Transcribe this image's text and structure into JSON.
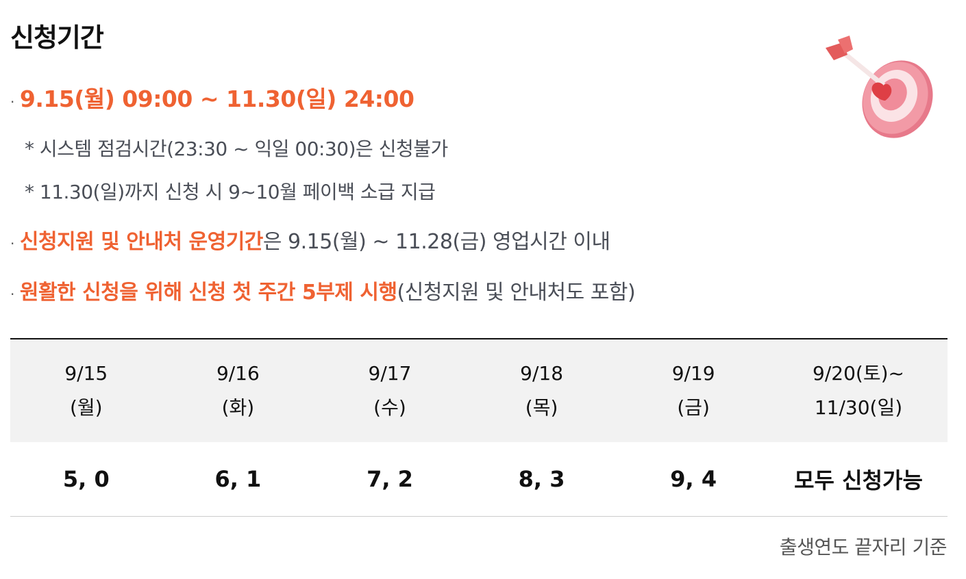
{
  "title": "신청기간",
  "period": "9.15(월) 09:00 ~ 11.30(일) 24:00",
  "notes": [
    "* 시스템 점검시간(23:30 ~ 익일 00:30)은 신청불가",
    "* 11.30(일)까지 신청 시 9~10월 페이백 소급 지급"
  ],
  "support": {
    "highlight": "신청지원 및 안내처 운영기간",
    "rest": "은 9.15(월) ~ 11.28(금) 영업시간 이내"
  },
  "rotation": {
    "highlight": "원활한 신청을 위해 신청 첫 주간 5부제 시행",
    "rest": "(신청지원 및 안내처도 포함)"
  },
  "table": {
    "headers": [
      {
        "line1": "9/15",
        "line2": "(월)"
      },
      {
        "line1": "9/16",
        "line2": "(화)"
      },
      {
        "line1": "9/17",
        "line2": "(수)"
      },
      {
        "line1": "9/18",
        "line2": "(목)"
      },
      {
        "line1": "9/19",
        "line2": "(금)"
      },
      {
        "line1": "9/20(토)~",
        "line2": "11/30(일)"
      }
    ],
    "values": [
      "5, 0",
      "6, 1",
      "7, 2",
      "8, 3",
      "9, 4",
      "모두 신청가능"
    ]
  },
  "footnote": "출생연도 끝자리 기준",
  "icon": "target-arrow-icon",
  "colors": {
    "accent": "#ef6232",
    "text": "#4a4e57",
    "header_bg": "#f2f2f2"
  }
}
